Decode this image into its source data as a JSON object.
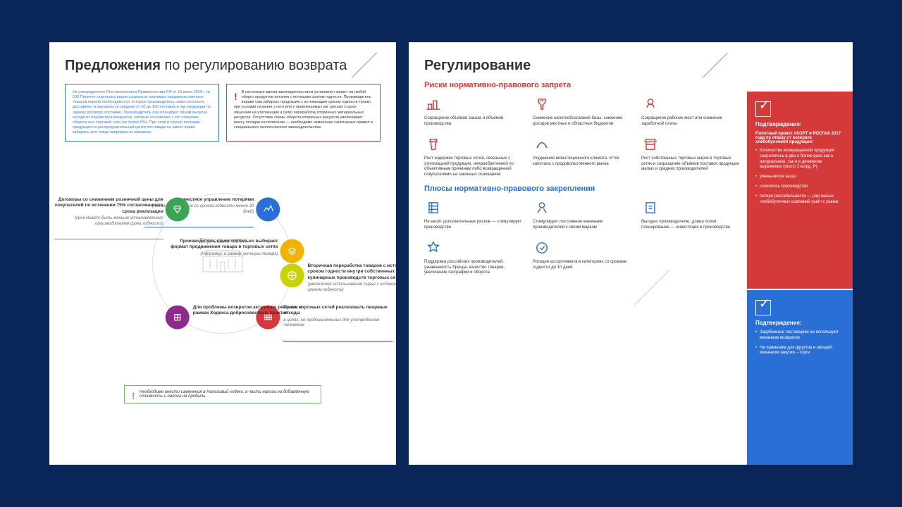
{
  "left": {
    "title_bold": "Предложения",
    "title_rest": " по регулированию возврата",
    "box_blue": "Из утвержденного Постановлением Правительства РФ от 15 июля 2010 г. № 530 Перечня отдельных видов социально значимых продовольственных товаров первой необходимости, которую производитель самостоятельно доставляет в магазины (в среднем от 50 до 100 поставок в год продукции по одному договору поставки). Производитель сам планирует объём выпуска исходя из параметров возвратов, которые составляют с его потерями оборота вне торговой сети (не более 5%). При этом в случае поставки продукции на распределительный центр поставщик не имеет права забирать этот товар напрямую из магазина.",
    "box_red": "В настоящее время законодательством установлен запрет на любой оборот продуктов питания с истекшим сроком годности. Производитель вправе сам забирать продукцию с истекающим сроком годности только при условии наличия у него или у привлекаемых им третьих сторон лицензии на утилизацию и (или) переработку вторичных материальных ресурсов.\nОтсутствие схемы оборота вторичных ресурсов увеличивает массу отходов на полигонах — необходимо изменение санитарных правил и специального экологического законодательства.",
    "center": "Торговые сети",
    "nodes": [
      {
        "angle": -50,
        "color": "#2a6fd6",
        "side": "left",
        "title": "Совместное управление потерями",
        "sub": "(только к продукции со сроком годности менее 20 дней)",
        "bar": "#2a6fd6"
      },
      {
        "angle": 50,
        "color": "#d53a3a",
        "side": "right",
        "title": "Право торговых сетей реализовать пищевые отходы",
        "sub": "в целях, не предназначенных для употребления человеком",
        "bar": "#d53a3a"
      },
      {
        "angle": -10,
        "color": "#f0b400",
        "side": "left",
        "title": "Производитель самостоятельно выбирает формат продвижения товара в торговых сетях",
        "sub": "(Например, в рамках ротации товара)",
        "bar": ""
      },
      {
        "angle": 10,
        "color": "#c7d300",
        "side": "right",
        "title": "Вторичная переработка товаров с истекающим сроком годности внутри собственных кулинарных производств торговых сетей",
        "sub": "(увеличение использования сырья с истекающим сроком годности)",
        "bar": ""
      },
      {
        "angle": 230,
        "color": "#3aa655",
        "side": "left",
        "title": "Договоры со снижением розничной цены для покупателей по истечении 75% согласованного срока реализации",
        "sub": "(срок может быть меньше установленного производителем срока годности)",
        "bar": "#3aa655"
      },
      {
        "angle": 130,
        "color": "#8e2a8e",
        "side": "right",
        "title": "Для проблемы возвратов актуально решение в рамках Кодекса добросовестных практик",
        "sub": "",
        "bar": ""
      }
    ],
    "green_note": "Необходимо внести изменения в Налоговый кодекс: в части налога на добавленную стоимость и налога на прибыль"
  },
  "right": {
    "title": "Регулирование",
    "sec1": "Риски нормативно-правового запрета",
    "risks": [
      "Сокращение объёмов заказа и объёмов производства",
      "Снижение налогооблагаемой базы, снижение доходов местных и областных бюджетов",
      "Сокращение рабочих мест или снижение заработной платы",
      "Рост издержек торговых сетей, связанных с утилизацией продукции, неприобретенной по объективным причинам либо возвращенной покупателями на законных основаниях",
      "Ухудшение инвестиционного климата, отток капитала с продовольственного рынка",
      "Рост собственных торговых марок в торговых сетях и сокращение объёмов поставок продукции малых и средних производителей"
    ],
    "sec2": "Плюсы нормативно-правового закрепления",
    "pluses": [
      "Не несёт дополнительных рисков — стимулирует производство",
      "Стимулирует постоянное внимание производителей к своим маркам",
      "Выгодно производителю: длина полки, планирование — инвестиция в производство",
      "Поддержка российских производителей: узнаваемость бренда, качество товаров, увеличение географии и оборота",
      "Ротация ассортимента в категориях со сроками годности до 10 дней"
    ],
    "panel_red": {
      "h": "Подтверждение:",
      "lead": "Пилотный проект АКОРТ и РОСПиК 2017 года по отказу от возврата хлебобулочной продукции:",
      "items": [
        "Количество возвращаемой продукции сократилось в два и более раза как в натуральном, так и в денежном выражении (около 5 млрд. Р)",
        "уменьшился заказ",
        "снизилось производство",
        "потеря рентабельности — ряд малых хлебобулочных компаний ушёл с рынка"
      ]
    },
    "panel_blue": {
      "h": "Подтверждение:",
      "items": [
        "Зарубежные поставщики не используют механизм возвратов",
        "Не применим для фруктов и овощей: механизм закупки – торги"
      ]
    }
  }
}
